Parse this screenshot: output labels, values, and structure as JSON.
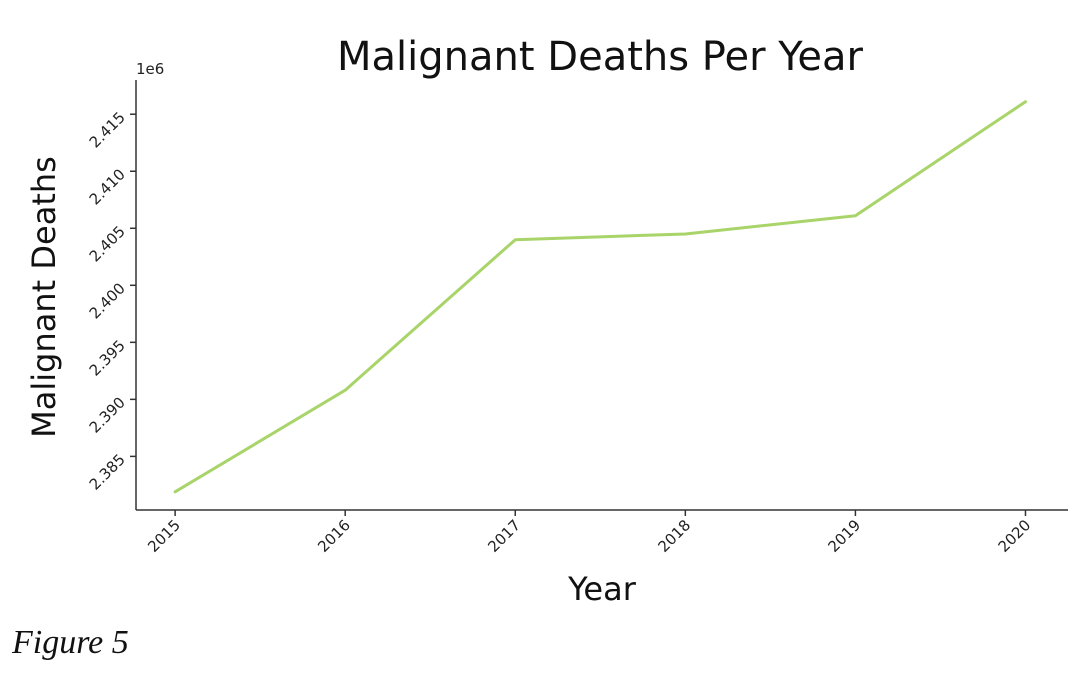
{
  "chart_data": {
    "type": "line",
    "title": "Malignant Deaths Per Year",
    "xlabel": "Year",
    "ylabel": "Malignant Deaths",
    "y_offset_label": "1e6",
    "x": [
      2015,
      2016,
      2017,
      2018,
      2019,
      2020
    ],
    "x_tick_labels": [
      "2015",
      "2016",
      "2017",
      "2018",
      "2019",
      "2020"
    ],
    "series": [
      {
        "values": [
          2381900,
          2390800,
          2404000,
          2404500,
          2406100,
          2416100
        ],
        "color": "#a8d46a"
      }
    ],
    "y_ticks": [
      2.385,
      2.39,
      2.395,
      2.4,
      2.405,
      2.41,
      2.415
    ],
    "y_tick_labels": [
      "2.385",
      "2.390",
      "2.395",
      "2.400",
      "2.405",
      "2.410",
      "2.415"
    ],
    "ylim": [
      2380300,
      2418000
    ],
    "xlim": [
      2014.77,
      2020.25
    ],
    "grid": false,
    "legend": "none"
  },
  "figure": {
    "caption": "Figure 5"
  }
}
